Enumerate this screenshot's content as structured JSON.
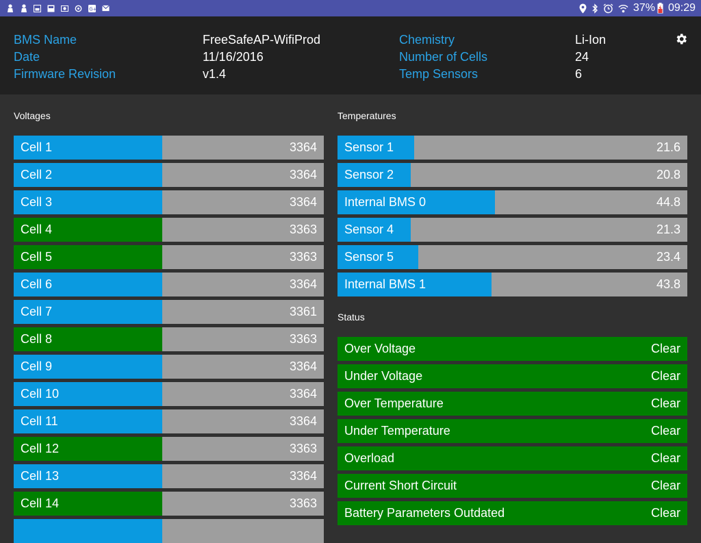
{
  "statusbar": {
    "left_icons": [
      "person-icon",
      "person-icon",
      "image-icon",
      "gallery-icon",
      "photo-icon",
      "sync-icon",
      "google-plus-icon",
      "mail-icon"
    ],
    "battery_percent": "37%",
    "time": "09:29"
  },
  "header": {
    "left": [
      {
        "label": "BMS Name",
        "value": "FreeSafeAP-WifiProd"
      },
      {
        "label": "Date",
        "value": "11/16/2016"
      },
      {
        "label": "Firmware Revision",
        "value": "v1.4"
      }
    ],
    "right": [
      {
        "label": "Chemistry",
        "value": "Li-Ion"
      },
      {
        "label": "Number of Cells",
        "value": "24"
      },
      {
        "label": "Temp Sensors",
        "value": "6"
      }
    ]
  },
  "voltages": {
    "title": "Voltages",
    "items": [
      {
        "label": "Cell 1",
        "value": "3364",
        "level": 0.48,
        "color": "#0a9ae0"
      },
      {
        "label": "Cell 2",
        "value": "3364",
        "level": 0.48,
        "color": "#0a9ae0"
      },
      {
        "label": "Cell 3",
        "value": "3364",
        "level": 0.48,
        "color": "#0a9ae0"
      },
      {
        "label": "Cell 4",
        "value": "3363",
        "level": 0.48,
        "color": "#008000"
      },
      {
        "label": "Cell 5",
        "value": "3363",
        "level": 0.48,
        "color": "#008000"
      },
      {
        "label": "Cell 6",
        "value": "3364",
        "level": 0.48,
        "color": "#0a9ae0"
      },
      {
        "label": "Cell 7",
        "value": "3361",
        "level": 0.478,
        "color": "#0a9ae0"
      },
      {
        "label": "Cell 8",
        "value": "3363",
        "level": 0.48,
        "color": "#008000"
      },
      {
        "label": "Cell 9",
        "value": "3364",
        "level": 0.48,
        "color": "#0a9ae0"
      },
      {
        "label": "Cell 10",
        "value": "3364",
        "level": 0.48,
        "color": "#0a9ae0"
      },
      {
        "label": "Cell 11",
        "value": "3364",
        "level": 0.48,
        "color": "#0a9ae0"
      },
      {
        "label": "Cell 12",
        "value": "3363",
        "level": 0.48,
        "color": "#008000"
      },
      {
        "label": "Cell 13",
        "value": "3364",
        "level": 0.48,
        "color": "#0a9ae0"
      },
      {
        "label": "Cell 14",
        "value": "3363",
        "level": 0.48,
        "color": "#008000"
      },
      {
        "label": "",
        "value": "",
        "level": 0.48,
        "color": "#0a9ae0"
      }
    ]
  },
  "temperatures": {
    "title": "Temperatures",
    "items": [
      {
        "label": "Sensor 1",
        "value": "21.6",
        "level": 0.22,
        "color": "#0a9ae0"
      },
      {
        "label": "Sensor 2",
        "value": "20.8",
        "level": 0.21,
        "color": "#0a9ae0"
      },
      {
        "label": "Internal BMS 0",
        "value": "44.8",
        "level": 0.45,
        "color": "#0a9ae0"
      },
      {
        "label": "Sensor 4",
        "value": "21.3",
        "level": 0.21,
        "color": "#0a9ae0"
      },
      {
        "label": "Sensor 5",
        "value": "23.4",
        "level": 0.23,
        "color": "#0a9ae0"
      },
      {
        "label": "Internal BMS 1",
        "value": "43.8",
        "level": 0.44,
        "color": "#0a9ae0"
      }
    ]
  },
  "status": {
    "title": "Status",
    "items": [
      {
        "label": "Over Voltage",
        "value": "Clear"
      },
      {
        "label": "Under Voltage",
        "value": "Clear"
      },
      {
        "label": "Over Temperature",
        "value": "Clear"
      },
      {
        "label": "Under Temperature",
        "value": "Clear"
      },
      {
        "label": "Overload",
        "value": "Clear"
      },
      {
        "label": "Current Short Circuit",
        "value": "Clear"
      },
      {
        "label": "Battery Parameters Outdated",
        "value": "Clear"
      }
    ]
  },
  "colors": {
    "accent_label": "#2aa3e6",
    "status_bar": "#4b52a8",
    "header_bg": "#212121",
    "body_bg": "#303030",
    "bar_track": "#9e9e9e",
    "ok_green": "#008000",
    "blue_fill": "#0a9ae0"
  }
}
